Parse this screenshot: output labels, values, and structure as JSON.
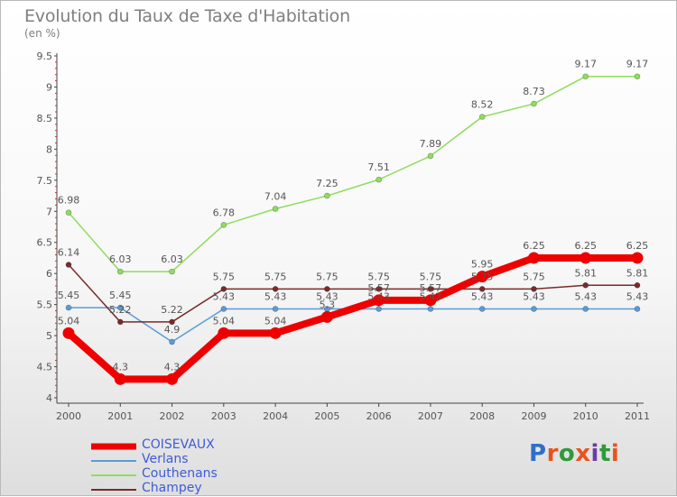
{
  "title": "Evolution du Taux de Taxe d'Habitation",
  "subtitle": "(en %)",
  "logo": {
    "text": "Proxiti",
    "colors": [
      "#2f6fc9",
      "#e8541c",
      "#2f9a3a",
      "#e8541c",
      "#6c3da3",
      "#2f9a3a",
      "#e8541c"
    ]
  },
  "chart_data": {
    "type": "line",
    "x": [
      "2000",
      "2001",
      "2002",
      "2003",
      "2004",
      "2005",
      "2006",
      "2007",
      "2008",
      "2009",
      "2010",
      "2011"
    ],
    "ylim": [
      4,
      9.5
    ],
    "yticks": [
      "4",
      "4.5",
      "5",
      "5.5",
      "6",
      "6.5",
      "7",
      "7.5",
      "8",
      "8.5",
      "9",
      "9.5"
    ],
    "grid": false,
    "legend_position": "bottom-left",
    "series": [
      {
        "name": "COISEVAUX",
        "color": "#ee0000",
        "width": "thick",
        "values": [
          5.04,
          4.3,
          4.3,
          5.04,
          5.04,
          5.3,
          5.57,
          5.57,
          5.95,
          6.25,
          6.25,
          6.25
        ],
        "labels": [
          "5.04",
          "4.3",
          "4.3",
          "5.04",
          "5.04",
          "5.3",
          "5.57",
          "5.57",
          "5.95",
          "6.25",
          "6.25",
          "6.25"
        ]
      },
      {
        "name": "Verlans",
        "color": "#5b9bd5",
        "width": "thin",
        "values": [
          5.45,
          5.45,
          4.9,
          5.43,
          5.43,
          5.43,
          5.43,
          5.43,
          5.43,
          5.43,
          5.43,
          5.43
        ],
        "labels": [
          "5.45",
          "5.45",
          "4.9",
          "5.43",
          "5.43",
          "5.43",
          "5.43",
          "5.43",
          "5.43",
          "5.43",
          "5.43",
          "5.43"
        ]
      },
      {
        "name": "Couthenans",
        "color": "#8fdc5e",
        "width": "thin",
        "values": [
          6.98,
          6.03,
          6.03,
          6.78,
          7.04,
          7.25,
          7.51,
          7.89,
          8.52,
          8.73,
          9.17,
          9.17
        ],
        "labels": [
          "6.98",
          "6.03",
          "6.03",
          "6.78",
          "7.04",
          "7.25",
          "7.51",
          "7.89",
          "8.52",
          "8.73",
          "9.17",
          "9.17"
        ]
      },
      {
        "name": "Champey",
        "color": "#7a2a2a",
        "width": "thin",
        "values": [
          6.14,
          5.22,
          5.22,
          5.75,
          5.75,
          5.75,
          5.75,
          5.75,
          5.75,
          5.75,
          5.81,
          5.81
        ],
        "labels": [
          "6.14",
          "5.22",
          "5.22",
          "5.75",
          "5.75",
          "5.75",
          "5.75",
          "5.75",
          "5.75",
          "5.75",
          "5.81",
          "5.81"
        ]
      }
    ]
  }
}
